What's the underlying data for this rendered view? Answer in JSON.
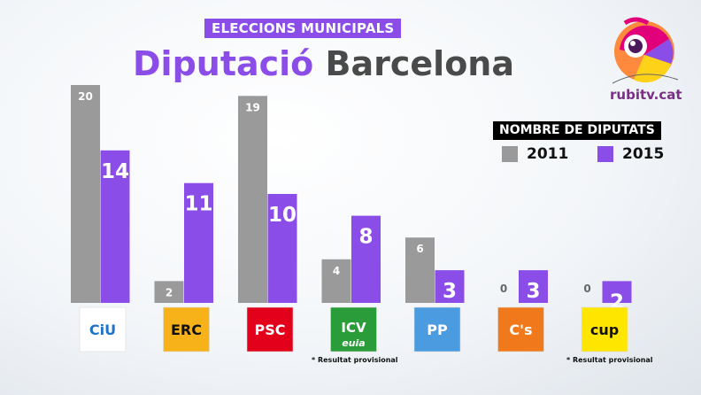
{
  "header": {
    "kicker": "ELECCIONS MUNICIPALS",
    "title_part1": "Diputació",
    "title_part2": "Barcelona"
  },
  "brand": {
    "name": "rubitv.cat"
  },
  "legend": {
    "title": "NOMBRE DE DIPUTATS"
  },
  "colors": {
    "2011": "#9a9a9a",
    "2015": "#8b4de8",
    "accent": "#8b4de8"
  },
  "chart_data": {
    "type": "bar",
    "categories": [
      "CiU",
      "ERC",
      "PSC",
      "ICV-EUiA",
      "PP",
      "C's",
      "CUP"
    ],
    "series": [
      {
        "name": "2011",
        "values": [
          20,
          2,
          19,
          4,
          6,
          0,
          0
        ]
      },
      {
        "name": "2015",
        "values": [
          14,
          11,
          10,
          8,
          3,
          3,
          2
        ]
      }
    ],
    "title": "Diputació Barcelona",
    "legend_title": "NOMBRE DE DIPUTATS",
    "legend_position": "top-right",
    "ylim": [
      0,
      20
    ],
    "grid": false
  },
  "party_logos": [
    {
      "icon": "ciu-logo",
      "text": "CiU",
      "bg": "#ffffff",
      "fg": "#1e73c8"
    },
    {
      "icon": "erc-logo",
      "text": "ERC",
      "bg": "#f7b21a",
      "fg": "#111111"
    },
    {
      "icon": "psc-logo",
      "text": "PSC",
      "bg": "#e2001a",
      "fg": "#ffffff"
    },
    {
      "icon": "icv-euia-logo",
      "text": "ICV",
      "text2": "euia",
      "bg": "#2a9d3a",
      "fg": "#ffffff"
    },
    {
      "icon": "pp-logo",
      "text": "PP",
      "bg": "#4a9be0",
      "fg": "#ffffff"
    },
    {
      "icon": "cs-logo",
      "text": "C's",
      "bg": "#f07a1b",
      "fg": "#ffffff"
    },
    {
      "icon": "cup-logo",
      "text": "cup",
      "bg": "#ffe600",
      "fg": "#111111"
    }
  ],
  "footnotes": [
    "* Resultat provisional",
    "* Resultat provisional"
  ]
}
